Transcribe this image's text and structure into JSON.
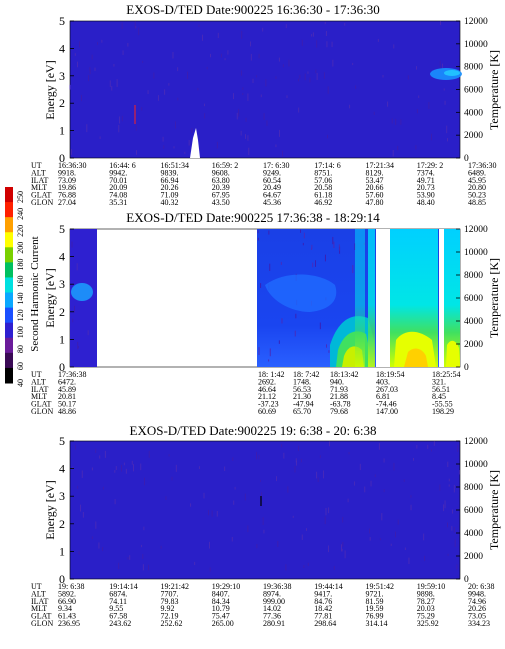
{
  "chart_data": [
    {
      "type": "heatmap",
      "title": "EXOS-D/TED   Date:900225   16:36:30 - 17:36:30",
      "ylabel": "Energy [eV]",
      "ylabel_right": "Temperature [K]",
      "ylim": [
        0,
        5
      ],
      "ylim_right": [
        0,
        12000
      ],
      "yticks": [
        "0",
        "1",
        "2",
        "3",
        "4",
        "5"
      ],
      "yticks_right": [
        "0",
        "2000",
        "4000",
        "6000",
        "8000",
        "10000",
        "12000"
      ],
      "row_labels": [
        "UT",
        "ALT",
        "ILAT",
        "MLT",
        "GLAT",
        "GLON"
      ],
      "columns": [
        [
          "16:36:30",
          "9918.",
          "73.09",
          "19.86",
          "76.88",
          "27.04"
        ],
        [
          "16:44: 6",
          "9942.",
          "70.01",
          "20.09",
          "74.08",
          "35.31"
        ],
        [
          "16:51:34",
          "9839.",
          "66.94",
          "20.26",
          "71.09",
          "40.32"
        ],
        [
          "16:59: 2",
          "9608.",
          "63.80",
          "20.39",
          "67.95",
          "43.50"
        ],
        [
          "17: 6:30",
          "9249.",
          "60.54",
          "20.49",
          "64.67",
          "45.36"
        ],
        [
          "17:14: 6",
          "8751.",
          "57.06",
          "20.58",
          "61.18",
          "46.92"
        ],
        [
          "17:21:34",
          "8129.",
          "53.47",
          "20.66",
          "57.60",
          "47.80"
        ],
        [
          "17:29: 2",
          "7374.",
          "49.71",
          "20.73",
          "53.90",
          "48.40"
        ],
        [
          "17:36:30",
          "6489.",
          "45.95",
          "20.80",
          "50.23",
          "48.85"
        ]
      ]
    },
    {
      "type": "heatmap",
      "title": "EXOS-D/TED   Date:900225   17:36:38 - 18:29:14",
      "ylabel": "Energy [eV]",
      "ylabel_right": "Temperature [K]",
      "ylim": [
        0,
        5
      ],
      "ylim_right": [
        0,
        12000
      ],
      "yticks": [
        "0",
        "1",
        "2",
        "3",
        "4",
        "5"
      ],
      "yticks_right": [
        "0",
        "2000",
        "4000",
        "6000",
        "8000",
        "10000",
        "12000"
      ],
      "colorbar_label": "Second Harmonic Current",
      "colorbar_ticks": [
        "40",
        "60",
        "80",
        "100",
        "120",
        "140",
        "160",
        "180",
        "200",
        "220",
        "240",
        "250"
      ],
      "colorbar_colors": [
        "#000000",
        "#3a0a55",
        "#6a1b9a",
        "#2e1fd0",
        "#1a4fff",
        "#0aa8ff",
        "#00e0e0",
        "#00c060",
        "#7ad000",
        "#ffff00",
        "#ffa000",
        "#ff2000",
        "#d00000"
      ],
      "row_labels": [
        "UT",
        "ALT",
        "ILAT",
        "MLT",
        "GLAT",
        "GLON"
      ],
      "columns": [
        [
          "17:36:38",
          "6472.",
          "45.89",
          "20.81",
          "50.17",
          "48.86"
        ],
        [
          "18: 1:42",
          "2692.",
          "46.64",
          "21.12",
          "-37.23",
          "60.69"
        ],
        [
          "18: 7:42",
          "1748.",
          "56.53",
          "21.30",
          "-47.94",
          "65.70"
        ],
        [
          "18:13:42",
          "940.",
          "71.93",
          "21.88",
          "-63.78",
          "79.68"
        ],
        [
          "18:19:54",
          "403.",
          "267.03",
          "6.81",
          "-74.46",
          "147.00"
        ],
        [
          "18:25:54",
          "321.",
          "56.51",
          "8.45",
          "-55.55",
          "198.29"
        ]
      ]
    },
    {
      "type": "heatmap",
      "title": "EXOS-D/TED   Date:900225   19: 6:38 - 20: 6:38",
      "ylabel": "Energy [eV]",
      "ylabel_right": "Temperature [K]",
      "ylim": [
        0,
        5
      ],
      "ylim_right": [
        0,
        12000
      ],
      "yticks": [
        "0",
        "1",
        "2",
        "3",
        "4",
        "5"
      ],
      "yticks_right": [
        "0",
        "2000",
        "4000",
        "6000",
        "8000",
        "10000",
        "12000"
      ],
      "row_labels": [
        "UT",
        "ALT",
        "ILAT",
        "MLT",
        "GLAT",
        "GLON"
      ],
      "columns": [
        [
          "19: 6:38",
          "5892.",
          "66.90",
          "9.34",
          "61.43",
          "236.95"
        ],
        [
          "19:14:14",
          "6874.",
          "74.11",
          "9.55",
          "67.58",
          "243.62"
        ],
        [
          "19:21:42",
          "7707.",
          "79.83",
          "9.92",
          "72.19",
          "252.62"
        ],
        [
          "19:29:10",
          "8407.",
          "84.34",
          "10.79",
          "75.47",
          "265.00"
        ],
        [
          "19:36:38",
          "8974.",
          "999.00",
          "14.02",
          "77.36",
          "280.91"
        ],
        [
          "19:44:14",
          "9417.",
          "84.76",
          "18.42",
          "77.81",
          "298.64"
        ],
        [
          "19:51:42",
          "9721.",
          "81.59",
          "19.59",
          "76.99",
          "314.14"
        ],
        [
          "19:59:10",
          "9898.",
          "78.27",
          "20.03",
          "75.29",
          "325.92"
        ],
        [
          "20: 6:38",
          "9948.",
          "74.96",
          "20.26",
          "73.05",
          "334.23"
        ]
      ]
    }
  ]
}
